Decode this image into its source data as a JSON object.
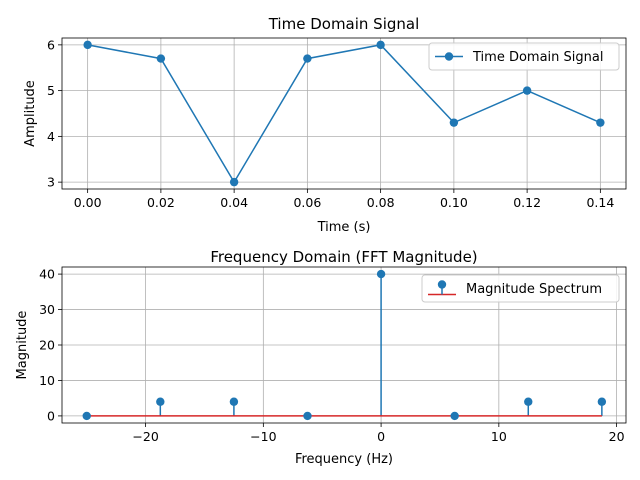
{
  "chart_data": [
    {
      "type": "line",
      "title": "Time Domain Signal",
      "xlabel": "Time (s)",
      "ylabel": "Amplitude",
      "xlim": [
        -0.007,
        0.147
      ],
      "ylim": [
        2.85,
        6.15
      ],
      "xticks": [
        0.0,
        0.02,
        0.04,
        0.06,
        0.08,
        0.1,
        0.12,
        0.14
      ],
      "xtick_labels": [
        "0.00",
        "0.02",
        "0.04",
        "0.06",
        "0.08",
        "0.10",
        "0.12",
        "0.14"
      ],
      "yticks": [
        3,
        4,
        5,
        6
      ],
      "ytick_labels": [
        "3",
        "4",
        "5",
        "6"
      ],
      "grid": true,
      "legend_position": "top-right",
      "color": "#1f77b4",
      "series": [
        {
          "name": "Time Domain Signal",
          "x": [
            0.0,
            0.02,
            0.04,
            0.06,
            0.08,
            0.1,
            0.12,
            0.14
          ],
          "y": [
            6.0,
            5.7,
            3.0,
            5.7,
            6.0,
            4.3,
            5.0,
            4.3
          ]
        }
      ]
    },
    {
      "type": "stem",
      "title": "Frequency Domain (FFT Magnitude)",
      "xlabel": "Frequency (Hz)",
      "ylabel": "Magnitude",
      "xlim": [
        -27.1,
        20.8
      ],
      "ylim": [
        -2.0,
        42.0
      ],
      "xticks": [
        -20,
        -10,
        0,
        10,
        20
      ],
      "xtick_labels": [
        "−20",
        "−10",
        "0",
        "10",
        "20"
      ],
      "yticks": [
        0,
        10,
        20,
        30,
        40
      ],
      "ytick_labels": [
        "0",
        "10",
        "20",
        "30",
        "40"
      ],
      "grid": true,
      "legend_position": "top-right",
      "color": "#1f77b4",
      "baseline_color": "#d62728",
      "series": [
        {
          "name": "Magnitude Spectrum",
          "x": [
            -25.0,
            -18.75,
            -12.5,
            -6.25,
            0.0,
            6.25,
            12.5,
            18.75
          ],
          "y": [
            0.0,
            4.0,
            4.0,
            0.0,
            40.0,
            0.0,
            4.0,
            4.0
          ]
        }
      ]
    }
  ]
}
